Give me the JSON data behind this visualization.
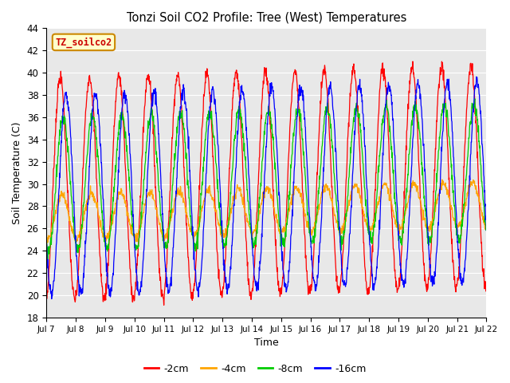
{
  "title": "Tonzi Soil CO2 Profile: Tree (West) Temperatures",
  "xlabel": "Time",
  "ylabel": "Soil Temperature (C)",
  "ylim": [
    18,
    44
  ],
  "yticks": [
    18,
    20,
    22,
    24,
    26,
    28,
    30,
    32,
    34,
    36,
    38,
    40,
    42,
    44
  ],
  "background_color": "#e8e8e8",
  "legend_label": "TZ_soilco2",
  "series_colors": {
    "-2cm": "#ff0000",
    "-4cm": "#ffa500",
    "-8cm": "#00cc00",
    "-16cm": "#0000ff"
  },
  "series_labels": [
    "-2cm",
    "-4cm",
    "-8cm",
    "-16cm"
  ],
  "x_tick_labels": [
    "Jul 7",
    "Jul 8",
    "Jul 9",
    "Jul 10",
    "Jul 11",
    "Jul 12",
    "Jul 13",
    "Jul 14",
    "Jul 15",
    "Jul 16",
    "Jul 17",
    "Jul 18",
    "Jul 19",
    "Jul 20",
    "Jul 21",
    "Jul 22"
  ],
  "n_days": 15,
  "samples_per_day": 96,
  "amp_2": 10.0,
  "amp_4": 2.0,
  "amp_8": 6.0,
  "amp_16": 9.0,
  "phase_2": 0.22,
  "phase_4": 0.28,
  "phase_8": 0.32,
  "phase_16": 0.42,
  "base_mean": 29.5,
  "noise_seed": 7
}
